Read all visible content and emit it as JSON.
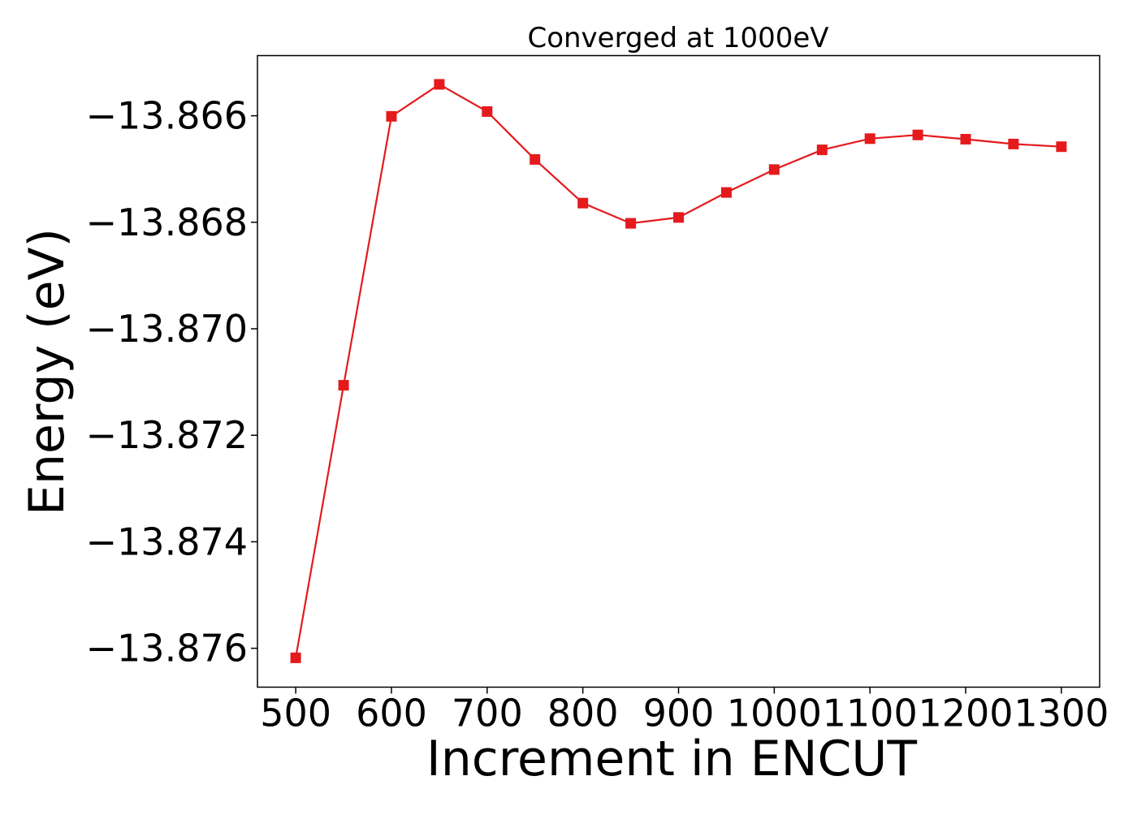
{
  "chart_data": {
    "type": "line",
    "title": "Converged at 1000eV",
    "xlabel": "Increment in ENCUT",
    "ylabel": "Energy (eV)",
    "x": [
      500,
      550,
      600,
      650,
      700,
      750,
      800,
      850,
      900,
      950,
      1000,
      1050,
      1100,
      1150,
      1200,
      1250,
      1300
    ],
    "series": [
      {
        "values": [
          -13.87618,
          -13.87106,
          -13.86601,
          -13.86541,
          -13.86592,
          -13.86682,
          -13.86764,
          -13.86802,
          -13.86791,
          -13.86744,
          -13.86701,
          -13.86664,
          -13.86643,
          -13.86636,
          -13.86644,
          -13.86653,
          -13.86658
        ],
        "color": "#e41a1c",
        "marker": "square"
      }
    ],
    "xticks": [
      500,
      600,
      700,
      800,
      900,
      1000,
      1100,
      1200,
      1300
    ],
    "yticks": [
      -13.866,
      -13.868,
      -13.87,
      -13.872,
      -13.874,
      -13.876
    ],
    "xtick_labels": [
      "500",
      "600",
      "700",
      "800",
      "900",
      "1000",
      "1100",
      "1200",
      "1300"
    ],
    "ytick_labels": [
      "−13.866",
      "−13.868",
      "−13.870",
      "−13.872",
      "−13.874",
      "−13.876"
    ],
    "xlim": [
      460,
      1340
    ],
    "ylim": [
      -13.87673,
      -13.86487
    ],
    "grid": false
  }
}
